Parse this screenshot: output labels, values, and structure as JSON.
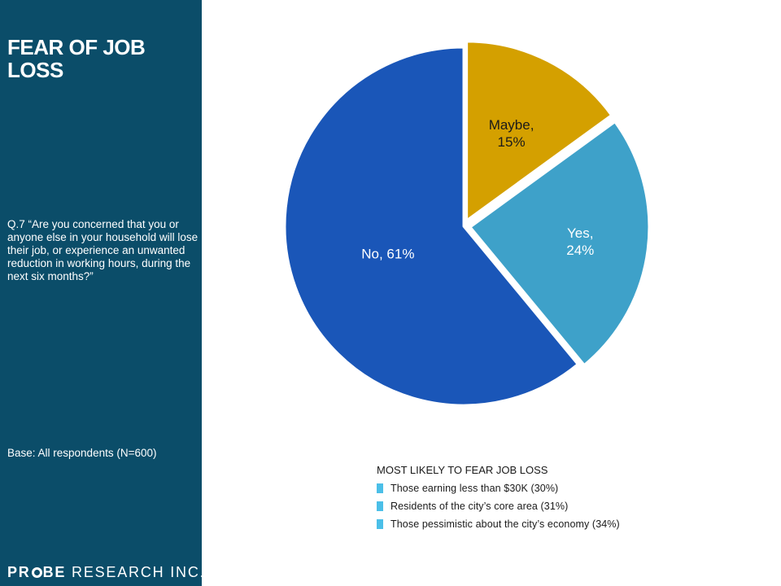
{
  "sidebar": {
    "title": "FEAR OF JOB LOSS",
    "question": "Q.7 “Are you concerned that you or anyone else in your household will lose their job, or experience an unwanted reduction in working hours, during the next six months?”",
    "base": "Base: All respondents (N=600)",
    "logo_part1": "PR",
    "logo_part2": "BE",
    "logo_rest": " RESEARCH INC."
  },
  "chart_data": {
    "type": "pie",
    "slices": [
      {
        "name": "Maybe",
        "value": 15,
        "label_line1": "Maybe,",
        "label_line2": "15%",
        "color": "#d4a000"
      },
      {
        "name": "Yes",
        "value": 24,
        "label_line1": "Yes,",
        "label_line2": "24%",
        "color": "#3ea1c9"
      },
      {
        "name": "No",
        "value": 61,
        "label_line1": "No, 61%",
        "label_line2": "",
        "color": "#1a56b8"
      }
    ]
  },
  "highlights": {
    "title": "MOST LIKELY TO FEAR JOB LOSS",
    "items": [
      "Those earning less than $30K (30%)",
      "Residents of the city’s core area (31%)",
      "Those pessimistic about the city’s economy (34%)"
    ],
    "bullet_color": "#4bbfe8"
  }
}
